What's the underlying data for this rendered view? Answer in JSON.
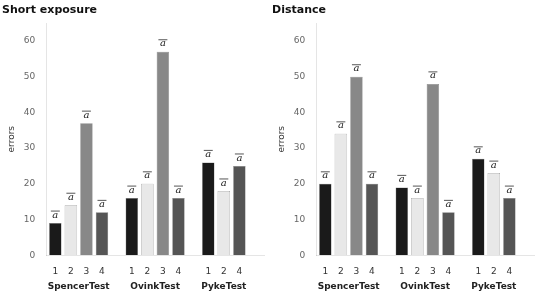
{
  "chart_data": [
    {
      "type": "bar",
      "title": "Short exposure",
      "ylabel": "errors",
      "groups": [
        {
          "name": "SpencerTest",
          "categories": [
            "1",
            "2",
            "3",
            "4"
          ],
          "values": [
            9,
            14,
            37,
            12
          ],
          "colors": [
            "#1a1a1a",
            "#e8e8e8",
            "#888888",
            "#555555"
          ],
          "annotations": [
            "a",
            "a",
            "a",
            "a"
          ]
        },
        {
          "name": "OvinkTest",
          "categories": [
            "1",
            "2",
            "3",
            "4"
          ],
          "values": [
            16,
            20,
            57,
            16
          ],
          "colors": [
            "#1a1a1a",
            "#e8e8e8",
            "#888888",
            "#555555"
          ],
          "annotations": [
            "a",
            "a",
            "a",
            "a"
          ]
        },
        {
          "name": "PykeTest",
          "categories": [
            "1",
            "2",
            "4"
          ],
          "values": [
            26,
            18,
            25
          ],
          "colors": [
            "#1a1a1a",
            "#e8e8e8",
            "#555555"
          ],
          "annotations": [
            "a",
            "a",
            "a"
          ]
        }
      ],
      "ylim": [
        0,
        65
      ],
      "yticks": [
        0,
        10,
        20,
        30,
        40,
        50,
        60
      ],
      "grid": false
    },
    {
      "type": "bar",
      "title": "Distance",
      "ylabel": "errors",
      "groups": [
        {
          "name": "SpencerTest",
          "categories": [
            "1",
            "2",
            "3",
            "4"
          ],
          "values": [
            20,
            34,
            50,
            20
          ],
          "colors": [
            "#1a1a1a",
            "#e8e8e8",
            "#888888",
            "#555555"
          ],
          "annotations": [
            "a",
            "a",
            "a",
            "a"
          ]
        },
        {
          "name": "OvinkTest",
          "categories": [
            "1",
            "2",
            "3",
            "4"
          ],
          "values": [
            19,
            16,
            48,
            12
          ],
          "colors": [
            "#1a1a1a",
            "#e8e8e8",
            "#888888",
            "#555555"
          ],
          "annotations": [
            "a",
            "a",
            "a",
            "a"
          ]
        },
        {
          "name": "PykeTest",
          "categories": [
            "1",
            "2",
            "4"
          ],
          "values": [
            27,
            23,
            16
          ],
          "colors": [
            "#1a1a1a",
            "#e8e8e8",
            "#555555"
          ],
          "annotations": [
            "a",
            "a",
            "a"
          ]
        }
      ],
      "ylim": [
        0,
        65
      ],
      "yticks": [
        0,
        10,
        20,
        30,
        40,
        50,
        60
      ],
      "grid": false
    }
  ]
}
